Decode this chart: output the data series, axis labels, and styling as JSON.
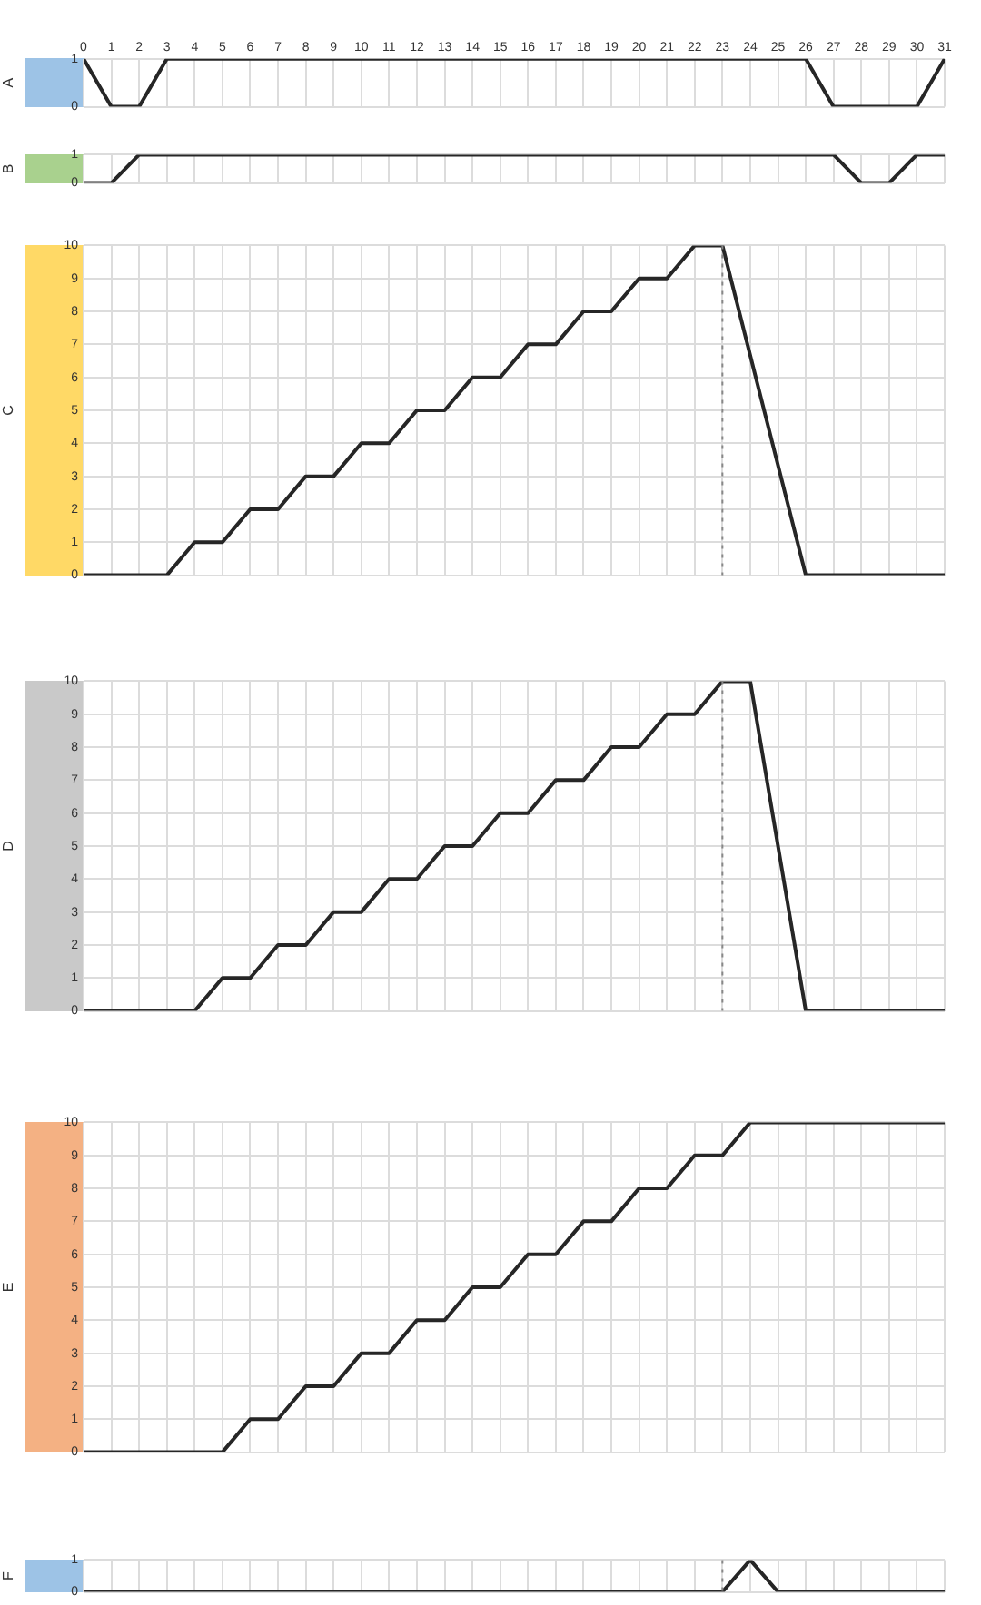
{
  "chart_data": [
    {
      "type": "line",
      "ylabel": "A",
      "x": [
        0,
        1,
        2,
        3,
        26,
        27,
        30,
        31
      ],
      "values": [
        1,
        0,
        0,
        1,
        1,
        0,
        0,
        1
      ],
      "color": "#262626",
      "xlim": [
        0,
        31
      ],
      "xticks": [
        0,
        1,
        2,
        3,
        4,
        5,
        6,
        7,
        8,
        9,
        10,
        11,
        12,
        13,
        14,
        15,
        16,
        17,
        18,
        19,
        20,
        21,
        22,
        23,
        24,
        25,
        26,
        27,
        28,
        29,
        30,
        31
      ],
      "ylim": [
        0,
        1
      ],
      "yticks": [
        0,
        1
      ],
      "grid": true,
      "marker": "none",
      "line_style": "solid"
    },
    {
      "type": "line",
      "ylabel": "B",
      "x": [
        0,
        1,
        2,
        27,
        28,
        29,
        30,
        31
      ],
      "values": [
        0,
        0,
        1,
        1,
        0,
        0,
        1,
        1
      ],
      "color": "#262626",
      "xlim": [
        0,
        31
      ],
      "xticks": [
        0,
        1,
        2,
        3,
        4,
        5,
        6,
        7,
        8,
        9,
        10,
        11,
        12,
        13,
        14,
        15,
        16,
        17,
        18,
        19,
        20,
        21,
        22,
        23,
        24,
        25,
        26,
        27,
        28,
        29,
        30,
        31
      ],
      "ylim": [
        0,
        1
      ],
      "yticks": [
        0,
        1
      ],
      "grid": true,
      "marker": "none",
      "line_style": "solid",
      "tick_labels": "y"
    },
    {
      "type": "line",
      "ylabel": "C",
      "x": [
        0,
        3,
        4,
        5,
        6,
        7,
        8,
        9,
        10,
        11,
        12,
        13,
        14,
        15,
        16,
        17,
        18,
        19,
        20,
        21,
        22,
        23,
        26,
        31
      ],
      "values": [
        0,
        0,
        1,
        1,
        2,
        2,
        3,
        3,
        4,
        4,
        5,
        5,
        6,
        6,
        7,
        7,
        8,
        8,
        9,
        9,
        10,
        10,
        0,
        0
      ],
      "color": "#262626",
      "xlim": [
        0,
        31
      ],
      "xticks": [
        0,
        1,
        2,
        3,
        4,
        5,
        6,
        7,
        8,
        9,
        10,
        11,
        12,
        13,
        14,
        15,
        16,
        17,
        18,
        19,
        20,
        21,
        22,
        23,
        24,
        25,
        26,
        27,
        28,
        29,
        30,
        31
      ],
      "ylim": [
        0,
        10
      ],
      "yticks": [
        0,
        1,
        2,
        3,
        4,
        5,
        6,
        7,
        8,
        9,
        10
      ],
      "grid": true,
      "marker": "none",
      "line_style": "solid",
      "tick_labels": "y",
      "ref_lines": [
        {
          "axis": "x",
          "value": 23,
          "line_style": "dotted"
        }
      ]
    },
    {
      "type": "line",
      "ylabel": "D",
      "x": [
        0,
        4,
        5,
        6,
        7,
        8,
        9,
        10,
        11,
        12,
        13,
        14,
        15,
        16,
        17,
        18,
        19,
        20,
        21,
        22,
        23,
        24,
        26,
        31
      ],
      "values": [
        0,
        0,
        1,
        1,
        2,
        2,
        3,
        3,
        4,
        4,
        5,
        5,
        6,
        6,
        7,
        7,
        8,
        8,
        9,
        9,
        10,
        10,
        0,
        0
      ],
      "color": "#262626",
      "xlim": [
        0,
        31
      ],
      "xticks": [
        0,
        1,
        2,
        3,
        4,
        5,
        6,
        7,
        8,
        9,
        10,
        11,
        12,
        13,
        14,
        15,
        16,
        17,
        18,
        19,
        20,
        21,
        22,
        23,
        24,
        25,
        26,
        27,
        28,
        29,
        30,
        31
      ],
      "ylim": [
        0,
        10
      ],
      "yticks": [
        0,
        1,
        2,
        3,
        4,
        5,
        6,
        7,
        8,
        9,
        10
      ],
      "grid": true,
      "marker": "none",
      "line_style": "solid",
      "tick_labels": "y",
      "ref_lines": [
        {
          "axis": "x",
          "value": 23,
          "line_style": "dotted"
        }
      ]
    },
    {
      "type": "line",
      "ylabel": "E",
      "x": [
        0,
        5,
        6,
        7,
        8,
        9,
        10,
        11,
        12,
        13,
        14,
        15,
        16,
        17,
        18,
        19,
        20,
        21,
        22,
        23,
        24,
        31
      ],
      "values": [
        0,
        0,
        1,
        1,
        2,
        2,
        3,
        3,
        4,
        4,
        5,
        5,
        6,
        6,
        7,
        7,
        8,
        8,
        9,
        9,
        10,
        10
      ],
      "color": "#262626",
      "xlim": [
        0,
        31
      ],
      "xticks": [
        0,
        1,
        2,
        3,
        4,
        5,
        6,
        7,
        8,
        9,
        10,
        11,
        12,
        13,
        14,
        15,
        16,
        17,
        18,
        19,
        20,
        21,
        22,
        23,
        24,
        25,
        26,
        27,
        28,
        29,
        30,
        31
      ],
      "ylim": [
        0,
        10
      ],
      "yticks": [
        0,
        1,
        2,
        3,
        4,
        5,
        6,
        7,
        8,
        9,
        10
      ],
      "grid": true,
      "marker": "none",
      "line_style": "solid",
      "tick_labels": "y"
    },
    {
      "type": "line",
      "ylabel": "F",
      "x": [
        0,
        23,
        24,
        25,
        31
      ],
      "values": [
        0,
        0,
        1,
        0,
        0
      ],
      "color": "#262626",
      "xlim": [
        0,
        31
      ],
      "xticks": [
        0,
        1,
        2,
        3,
        4,
        5,
        6,
        7,
        8,
        9,
        10,
        11,
        12,
        13,
        14,
        15,
        16,
        17,
        18,
        19,
        20,
        21,
        22,
        23,
        24,
        25,
        26,
        27,
        28,
        29,
        30,
        31
      ],
      "ylim": [
        0,
        1
      ],
      "yticks": [
        0,
        1
      ],
      "grid": true,
      "marker": "none",
      "line_style": "solid",
      "tick_labels": "y",
      "ref_lines": [
        {
          "axis": "x",
          "value": 23,
          "line_style": "dotted"
        }
      ]
    }
  ]
}
